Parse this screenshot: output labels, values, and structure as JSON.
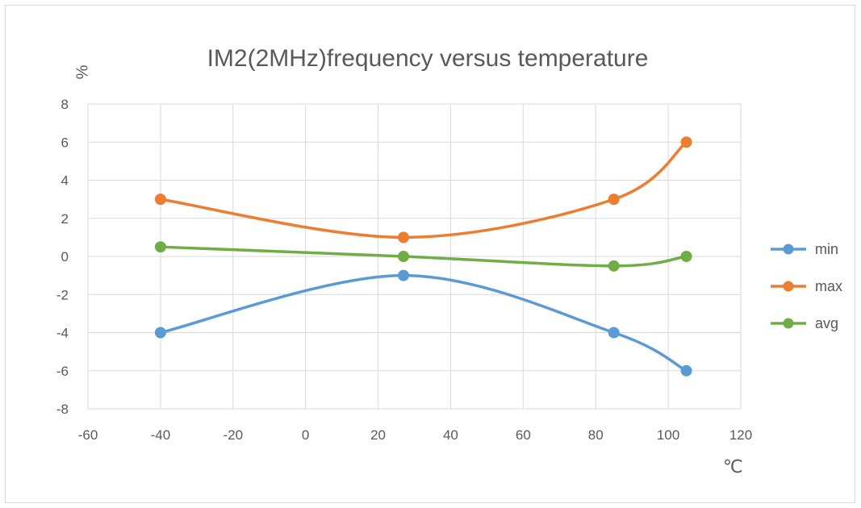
{
  "chart_data": {
    "type": "line",
    "title": "IM2(2MHz)frequency versus temperature",
    "xlabel": "℃",
    "ylabel": "%",
    "xlim": [
      -60,
      120
    ],
    "ylim": [
      -8,
      8
    ],
    "x_ticks": [
      "-60",
      "-40",
      "-20",
      "0",
      "20",
      "40",
      "60",
      "80",
      "100",
      "120"
    ],
    "y_ticks": [
      "8",
      "6",
      "4",
      "2",
      "0",
      "-2",
      "-4",
      "-6",
      "-8"
    ],
    "grid": true,
    "smooth": true,
    "legend_position": "right",
    "series": [
      {
        "name": "min",
        "color": "#5b9bd5",
        "x": [
          -40,
          27,
          85,
          105
        ],
        "y": [
          -4,
          -1,
          -4,
          -6
        ]
      },
      {
        "name": "max",
        "color": "#ed7d31",
        "x": [
          -40,
          27,
          85,
          105
        ],
        "y": [
          3,
          1,
          3,
          6
        ]
      },
      {
        "name": "avg",
        "color": "#70ad47",
        "x": [
          -40,
          27,
          85,
          105
        ],
        "y": [
          0.5,
          0,
          -0.5,
          0
        ]
      }
    ]
  }
}
